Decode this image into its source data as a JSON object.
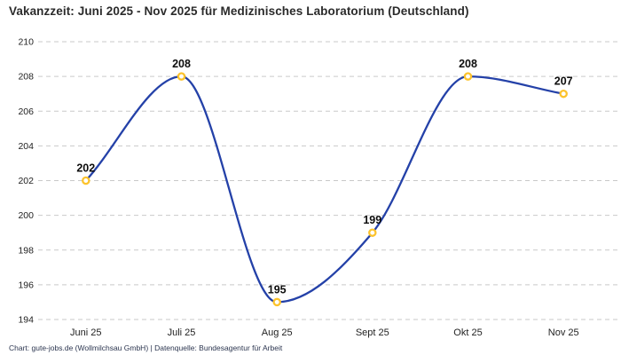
{
  "chart_data": {
    "type": "line",
    "title": "Vakanzzeit: Juni 2025 - Nov 2025 für Medizinisches Laboratorium (Deutschland)",
    "categories": [
      "Juni 25",
      "Juli 25",
      "Aug 25",
      "Sept 25",
      "Okt 25",
      "Nov 25"
    ],
    "values": [
      202,
      208,
      195,
      199,
      208,
      207
    ],
    "data_labels": [
      "202",
      "208",
      "195",
      "199",
      "208",
      "207"
    ],
    "ylim": [
      194,
      210
    ],
    "yticks": [
      194,
      196,
      198,
      200,
      202,
      204,
      206,
      208,
      210
    ],
    "ytick_step": 2,
    "xlabel": "",
    "ylabel": "",
    "grid": "horizontal-dashed",
    "legend": "none",
    "line_color": "#2441a8",
    "marker_ring_color": "#fcc32c",
    "marker_fill_color": "#ffffff",
    "gridline_color": "#c9c9c9"
  },
  "footer": {
    "text": "Chart: gute-jobs.de (Wollmilchsau GmbH) | Datenquelle: Bundesagentur für Arbeit"
  }
}
